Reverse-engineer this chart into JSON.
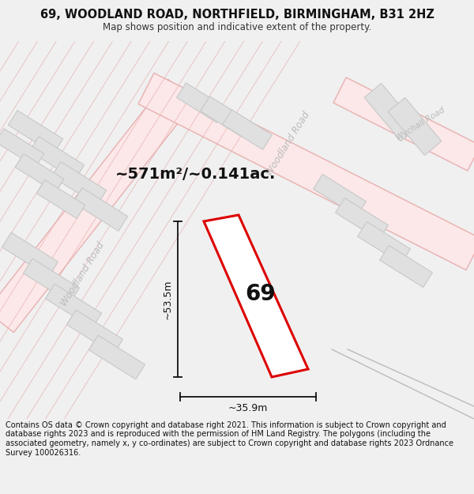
{
  "title": "69, WOODLAND ROAD, NORTHFIELD, BIRMINGHAM, B31 2HZ",
  "subtitle": "Map shows position and indicative extent of the property.",
  "footer": "Contains OS data © Crown copyright and database right 2021. This information is subject to Crown copyright and database rights 2023 and is reproduced with the permission of HM Land Registry. The polygons (including the associated geometry, namely x, y co-ordinates) are subject to Crown copyright and database rights 2023 Ordnance Survey 100026316.",
  "area_text": "~571m²/~0.141ac.",
  "dim_height": "~53.5m",
  "dim_width": "~35.9m",
  "plot_label": "69",
  "bg_color": "#f0f0f0",
  "map_bg": "#ffffff",
  "title_bg": "#ffffff",
  "road_color_light": "#f5c8c8",
  "plot_color": "#dd0000",
  "dim_color": "#111111",
  "title_fontsize": 10.5,
  "subtitle_fontsize": 8.5,
  "footer_fontsize": 7.0,
  "road_label_color": "#bbbbbb",
  "building_fill": "#e0e0e0",
  "building_edge": "#c8c8c8"
}
